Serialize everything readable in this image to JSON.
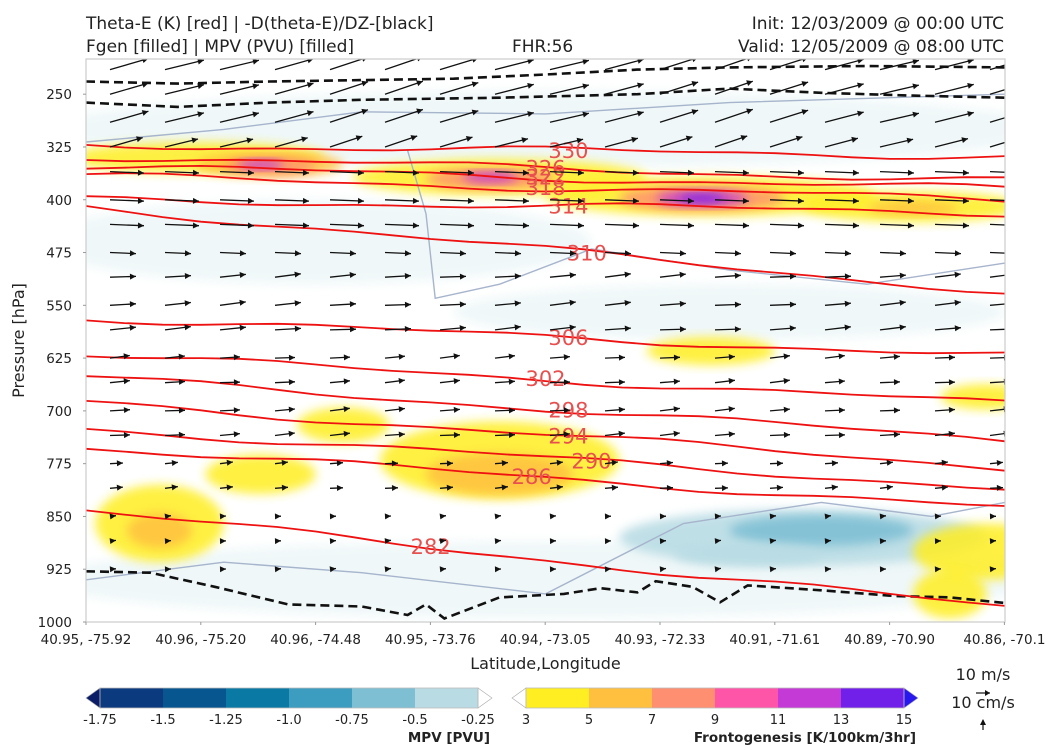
{
  "header": {
    "left_line1": "Theta-E (K) [red] | -D(theta-E)/DZ-[black]",
    "left_line2": "Fgen [filled] | MPV (PVU) [filled]",
    "center": "FHR:56",
    "right_line1": "Init: 12/03/2009 @ 00:00 UTC",
    "right_line2": "Valid: 12/05/2009 @ 08:00 UTC"
  },
  "chart_data": {
    "type": "cross-section",
    "xlabel": "Latitude,Longitude",
    "ylabel": "Pressure [hPa]",
    "x_ticks": [
      "40.95, -75.92",
      "40.96, -75.20",
      "40.96, -74.48",
      "40.95, -73.76",
      "40.94, -73.05",
      "40.93, -72.33",
      "40.91, -71.61",
      "40.89, -70.90",
      "40.86, -70.1"
    ],
    "y_ticks": [
      250,
      325,
      400,
      475,
      550,
      625,
      700,
      775,
      850,
      925,
      1000
    ],
    "ylim": [
      200,
      1000
    ],
    "y_inverted": true,
    "theta_e_contours": [
      {
        "value": 330,
        "label": "330",
        "y_left": 322,
        "y_right": 338
      },
      {
        "value": 326,
        "label": "326",
        "y_left": 338,
        "y_right": 373
      },
      {
        "value": 322,
        "label": "322",
        "y_left": 352,
        "y_right": 385
      },
      {
        "value": 318,
        "label": "318",
        "y_left": 366,
        "y_right": 400
      },
      {
        "value": 314,
        "label": "314",
        "y_left": 400,
        "y_right": 418
      },
      {
        "value": 310,
        "label": "310",
        "y_left": 410,
        "y_right": 532
      },
      {
        "value": 306,
        "label": "306",
        "y_left": 568,
        "y_right": 622
      },
      {
        "value": 302,
        "label": "302",
        "y_left": 620,
        "y_right": 690
      },
      {
        "value": 298,
        "label": "298",
        "y_left": 652,
        "y_right": 742
      },
      {
        "value": 294,
        "label": "294",
        "y_left": 688,
        "y_right": 780
      },
      {
        "value": 290,
        "label": "290",
        "y_left": 725,
        "y_right": 810
      },
      {
        "value": 286,
        "label": "286",
        "y_left": 752,
        "y_right": 838
      },
      {
        "value": 282,
        "label": "282",
        "y_left": 842,
        "y_right": 980
      }
    ],
    "mpv_colorbar": {
      "title": "MPV [PVU]",
      "ticks": [
        "-1.75",
        "-1.5",
        "-1.25",
        "-1.0",
        "-0.75",
        "-0.5",
        "-0.25"
      ],
      "colors": [
        "#0b1d66",
        "#0b3a7e",
        "#07568f",
        "#0a7aa5",
        "#3c9dc0",
        "#7fbfd4",
        "#b9dce4",
        "#ffffff"
      ]
    },
    "fgen_colorbar": {
      "title": "Frontogenesis [K/100km/3hr]",
      "ticks": [
        "3",
        "5",
        "7",
        "9",
        "11",
        "13",
        "15"
      ],
      "colors": [
        "#ffffff",
        "#ffee22",
        "#ffc040",
        "#ff8f70",
        "#ff55a8",
        "#c43ad6",
        "#7020e8",
        "#2818ee"
      ]
    },
    "wind_reference": {
      "horizontal": "10 m/s",
      "vertical": "10 cm/s"
    }
  }
}
